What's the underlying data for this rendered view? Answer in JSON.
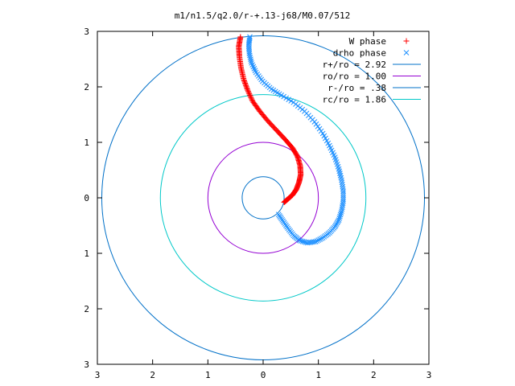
{
  "chart_data": {
    "type": "scatter",
    "title": "m1/n1.5/q2.0/r-+.13-j68/M0.07/512",
    "xlabel": "",
    "ylabel": "",
    "xlim": [
      -3,
      3
    ],
    "ylim": [
      -3,
      3
    ],
    "x_tick_labels": [
      "3",
      "2",
      "1",
      "0",
      "1",
      "2",
      "3"
    ],
    "y_tick_labels": [
      "3",
      "2",
      "1",
      "0",
      "1",
      "2",
      "3"
    ],
    "grid": false,
    "legend_position": "top-right",
    "series": [
      {
        "name": "W phase",
        "marker": "+",
        "color": "#ff0000",
        "points": [
          [
            0.38,
            -0.08
          ],
          [
            0.45,
            -0.02
          ],
          [
            0.53,
            0.05
          ],
          [
            0.6,
            0.15
          ],
          [
            0.65,
            0.28
          ],
          [
            0.68,
            0.42
          ],
          [
            0.67,
            0.58
          ],
          [
            0.62,
            0.75
          ],
          [
            0.53,
            0.9
          ],
          [
            0.4,
            1.05
          ],
          [
            0.25,
            1.21
          ],
          [
            0.09,
            1.38
          ],
          [
            -0.06,
            1.56
          ],
          [
            -0.19,
            1.74
          ],
          [
            -0.28,
            1.94
          ],
          [
            -0.35,
            2.13
          ],
          [
            -0.4,
            2.34
          ],
          [
            -0.43,
            2.55
          ],
          [
            -0.44,
            2.73
          ],
          [
            -0.41,
            2.9
          ]
        ]
      },
      {
        "name": "drho phase",
        "marker": "x",
        "color": "#1e90ff",
        "points": [
          [
            0.28,
            -0.3
          ],
          [
            0.36,
            -0.42
          ],
          [
            0.45,
            -0.55
          ],
          [
            0.55,
            -0.68
          ],
          [
            0.66,
            -0.77
          ],
          [
            0.8,
            -0.81
          ],
          [
            0.95,
            -0.79
          ],
          [
            1.08,
            -0.72
          ],
          [
            1.2,
            -0.63
          ],
          [
            1.3,
            -0.52
          ],
          [
            1.37,
            -0.4
          ],
          [
            1.42,
            -0.24
          ],
          [
            1.45,
            -0.06
          ],
          [
            1.45,
            0.12
          ],
          [
            1.42,
            0.32
          ],
          [
            1.37,
            0.52
          ],
          [
            1.3,
            0.73
          ],
          [
            1.2,
            0.94
          ],
          [
            1.08,
            1.16
          ],
          [
            0.93,
            1.37
          ],
          [
            0.75,
            1.56
          ],
          [
            0.55,
            1.72
          ],
          [
            0.33,
            1.85
          ],
          [
            0.15,
            1.96
          ],
          [
            -0.01,
            2.1
          ],
          [
            -0.13,
            2.26
          ],
          [
            -0.21,
            2.43
          ],
          [
            -0.25,
            2.6
          ],
          [
            -0.26,
            2.76
          ],
          [
            -0.24,
            2.9
          ]
        ]
      },
      {
        "name": "r+/ro = 2.92",
        "type": "circle",
        "radius": 2.92,
        "color": "#0070c8"
      },
      {
        "name": "ro/ro = 1.00",
        "type": "circle",
        "radius": 1.0,
        "color": "#9400d3"
      },
      {
        "name": "r-/ro = .38",
        "type": "circle",
        "radius": 0.38,
        "color": "#0070c8"
      },
      {
        "name": "rc/ro = 1.86",
        "type": "circle",
        "radius": 1.86,
        "color": "#00c8c8"
      }
    ]
  }
}
